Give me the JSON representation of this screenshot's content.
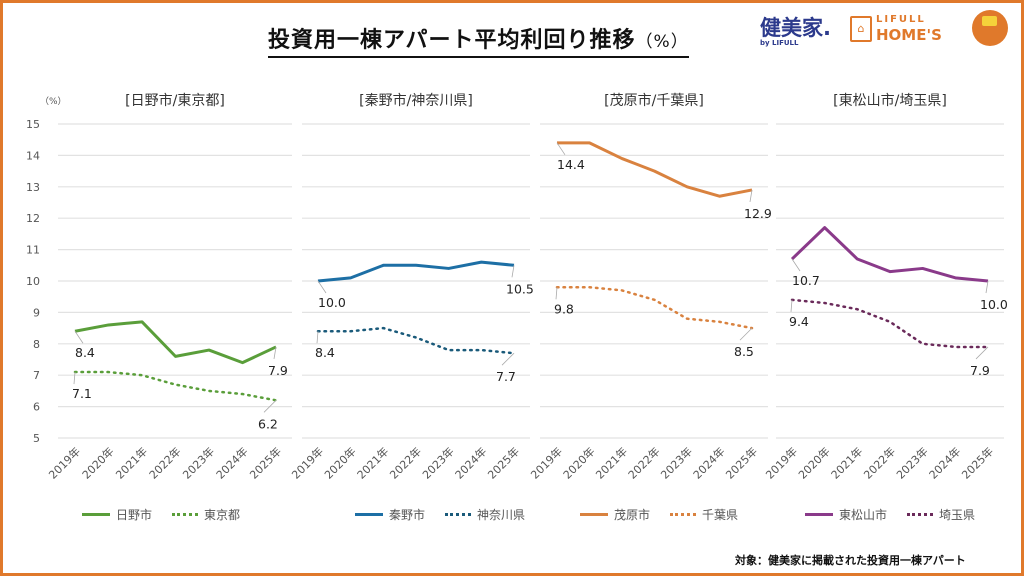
{
  "header": {
    "title": "投資用一棟アパート平均利回り推移",
    "title_unit": "（%）",
    "logo_kenbiya": "健美家.",
    "logo_kenbiya_sub": "by LIFULL",
    "logo_homes_top": "LIFULL",
    "logo_homes": "HOME'S"
  },
  "footnote": "対象：健美家に掲載された投資用一棟アパート",
  "chart_data": [
    {
      "type": "line",
      "title": "[日野市/東京都]",
      "ylabel": "（%）",
      "ylim": [
        5,
        15
      ],
      "yticks": [
        5,
        6,
        7,
        8,
        9,
        10,
        11,
        12,
        13,
        14,
        15
      ],
      "grid": true,
      "legend": "bottom",
      "categories": [
        "2019年",
        "2020年",
        "2021年",
        "2022年",
        "2023年",
        "2024年",
        "2025年"
      ],
      "series": [
        {
          "name": "日野市",
          "style": "solid",
          "color": "#5a9e3a",
          "values": [
            8.4,
            8.6,
            8.7,
            7.6,
            7.8,
            7.4,
            7.9
          ],
          "labels": [
            "8.4",
            "7.9"
          ]
        },
        {
          "name": "東京都",
          "style": "dotted",
          "color": "#5a9e3a",
          "values": [
            7.1,
            7.1,
            7.0,
            6.7,
            6.5,
            6.4,
            6.2
          ],
          "labels": [
            "7.1",
            "6.2"
          ]
        }
      ]
    },
    {
      "type": "line",
      "title": "[秦野市/神奈川県]",
      "ylim": [
        5,
        15
      ],
      "grid": true,
      "legend": "bottom",
      "categories": [
        "2019年",
        "2020年",
        "2021年",
        "2022年",
        "2023年",
        "2024年",
        "2025年"
      ],
      "series": [
        {
          "name": "秦野市",
          "style": "solid",
          "color": "#1d6fa5",
          "values": [
            10.0,
            10.1,
            10.5,
            10.5,
            10.4,
            10.6,
            10.5
          ],
          "labels": [
            "10.0",
            "10.5"
          ]
        },
        {
          "name": "神奈川県",
          "style": "dotted",
          "color": "#1a5a7a",
          "values": [
            8.4,
            8.4,
            8.5,
            8.2,
            7.8,
            7.8,
            7.7
          ],
          "labels": [
            "8.4",
            "7.7"
          ]
        }
      ]
    },
    {
      "type": "line",
      "title": "[茂原市/千葉県]",
      "ylim": [
        5,
        15
      ],
      "grid": true,
      "legend": "bottom",
      "categories": [
        "2019年",
        "2020年",
        "2021年",
        "2022年",
        "2023年",
        "2024年",
        "2025年"
      ],
      "series": [
        {
          "name": "茂原市",
          "style": "solid",
          "color": "#d9823f",
          "values": [
            14.4,
            14.4,
            13.9,
            13.5,
            13.0,
            12.7,
            12.9
          ],
          "labels": [
            "14.4",
            "12.9"
          ]
        },
        {
          "name": "千葉県",
          "style": "dotted",
          "color": "#d9823f",
          "values": [
            9.8,
            9.8,
            9.7,
            9.4,
            8.8,
            8.7,
            8.5
          ],
          "labels": [
            "9.8",
            "8.5"
          ]
        }
      ]
    },
    {
      "type": "line",
      "title": "[東松山市/埼玉県]",
      "ylim": [
        5,
        15
      ],
      "grid": true,
      "legend": "bottom",
      "categories": [
        "2019年",
        "2020年",
        "2021年",
        "2022年",
        "2023年",
        "2024年",
        "2025年"
      ],
      "series": [
        {
          "name": "東松山市",
          "style": "solid",
          "color": "#8a3a8a",
          "values": [
            10.7,
            11.7,
            10.7,
            10.3,
            10.4,
            10.1,
            10.0
          ],
          "labels": [
            "10.7",
            "10.0"
          ]
        },
        {
          "name": "埼玉県",
          "style": "dotted",
          "color": "#6a2a5a",
          "values": [
            9.4,
            9.3,
            9.1,
            8.7,
            8.0,
            7.9,
            7.9
          ],
          "labels": [
            "9.4",
            "7.9"
          ]
        }
      ]
    }
  ]
}
